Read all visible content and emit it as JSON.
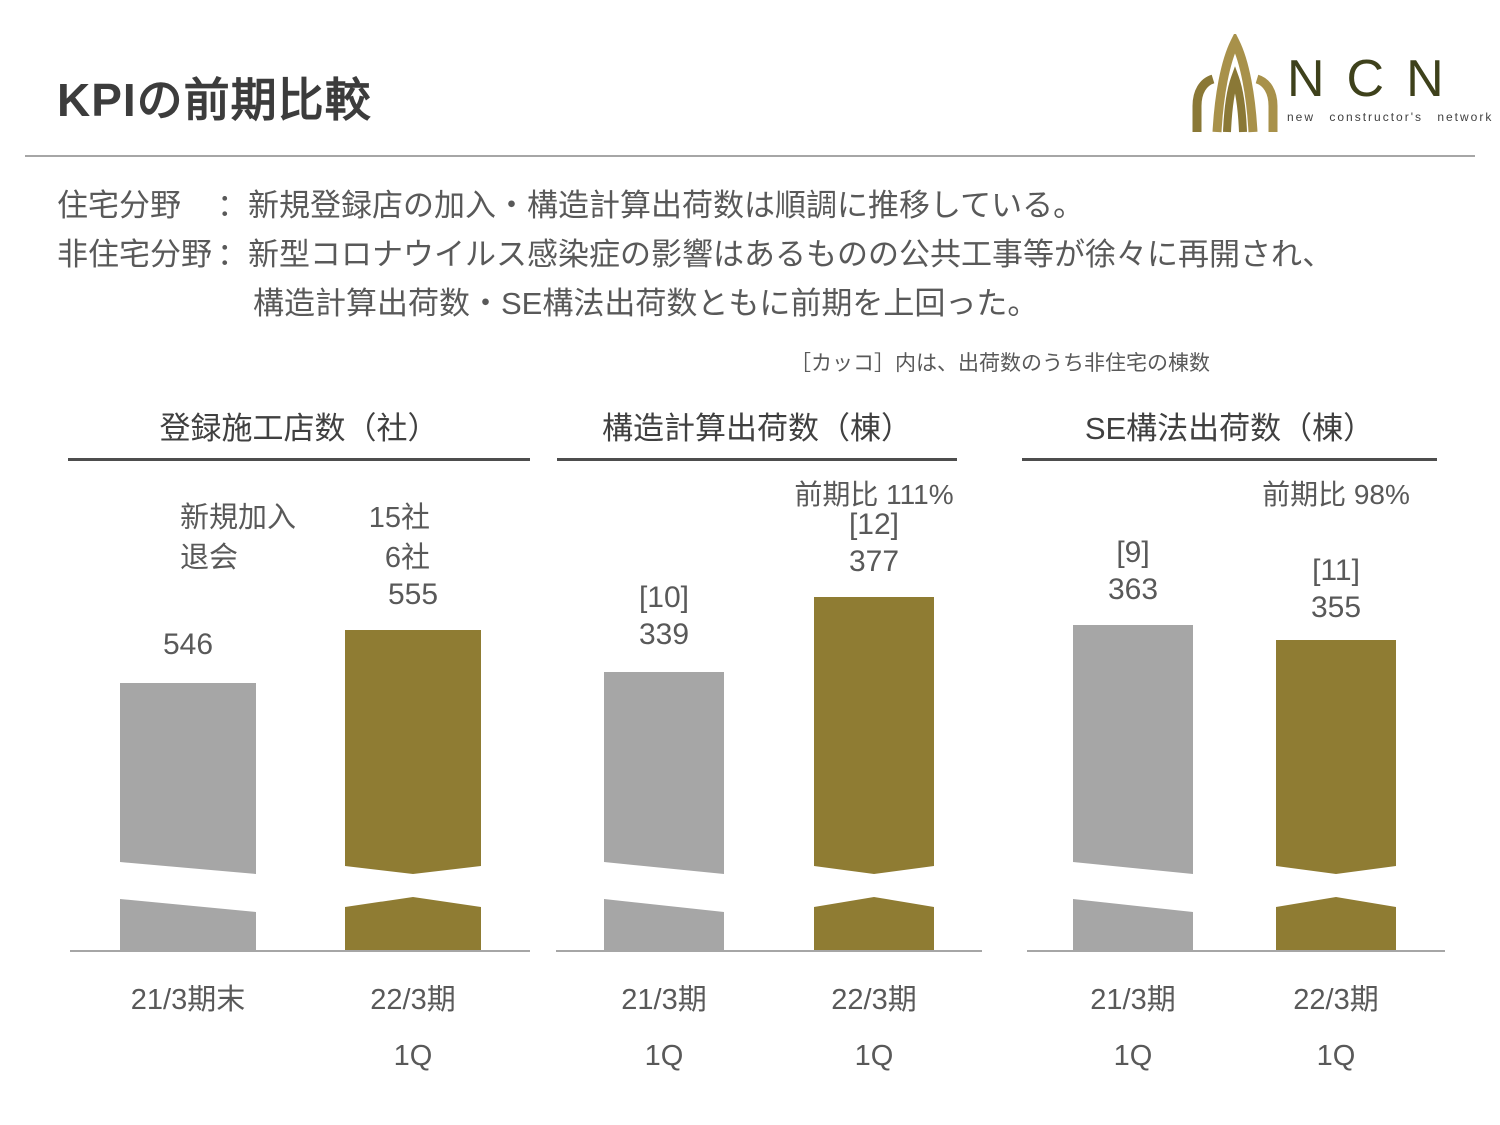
{
  "page": {
    "title": "KPIの前期比較"
  },
  "logo": {
    "letters": "NCN",
    "tagline": "new constructor's network"
  },
  "summary": {
    "line1_label": "住宅分野",
    "line1_sep": "：",
    "line1_text": "新規登録店の加入・構造計算出荷数は順調に推移している。",
    "line2_label": "非住宅分野",
    "line2_sep": "：",
    "line2_text": "新型コロナウイルス感染症の影響はあるものの公共工事等が徐々に再開され、",
    "line3_text": "構造計算出荷数・SE構法出荷数ともに前期を上回った。"
  },
  "note": "［カッコ］内は、出荷数のうち非住宅の棟数",
  "chart_data": [
    {
      "type": "bar",
      "title": "登録施工店数（社）",
      "categories": [
        {
          "period": "21/3期末",
          "quarter": ""
        },
        {
          "period": "22/3期",
          "quarter": "1Q"
        }
      ],
      "values": [
        546,
        555
      ],
      "annotations": {
        "new_label": "新規加入",
        "new_value": "15社",
        "out_label": "退会",
        "out_value": "6社"
      },
      "colors": [
        "#a6a6a6",
        "#8f7c33"
      ],
      "axis_break": true,
      "grid": false,
      "legend": false
    },
    {
      "type": "bar",
      "title": "構造計算出荷数（棟）",
      "yoy_label": "前期比 111%",
      "categories": [
        {
          "period": "21/3期",
          "quarter": "1Q"
        },
        {
          "period": "22/3期",
          "quarter": "1Q"
        }
      ],
      "values": [
        339,
        377
      ],
      "non_residential_labels": [
        "[10]",
        "[12]"
      ],
      "non_residential_values": [
        10,
        12
      ],
      "colors": [
        "#a6a6a6",
        "#8f7c33"
      ],
      "axis_break": true,
      "grid": false,
      "legend": false
    },
    {
      "type": "bar",
      "title": "SE構法出荷数（棟）",
      "yoy_label": "前期比 98%",
      "categories": [
        {
          "period": "21/3期",
          "quarter": "1Q"
        },
        {
          "period": "22/3期",
          "quarter": "1Q"
        }
      ],
      "values": [
        363,
        355
      ],
      "non_residential_labels": [
        "[9]",
        "[11]"
      ],
      "non_residential_values": [
        9,
        11
      ],
      "colors": [
        "#a6a6a6",
        "#8f7c33"
      ],
      "axis_break": true,
      "grid": false,
      "legend": false
    }
  ]
}
